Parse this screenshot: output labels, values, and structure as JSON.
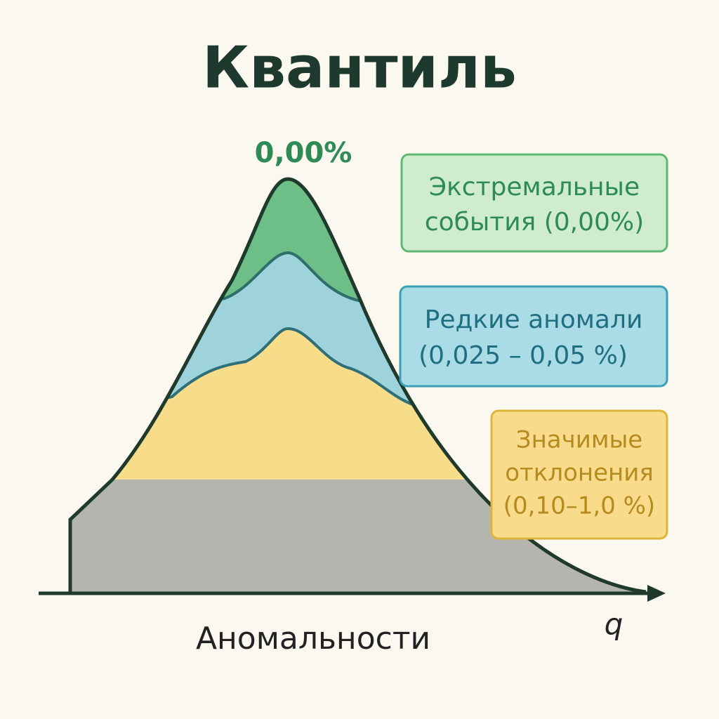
{
  "title": "Квантиль",
  "peak_label": "0,00%",
  "legend": [
    {
      "lines": [
        "Экстремальные",
        "события (0,00%)"
      ]
    },
    {
      "lines": [
        "Редкие аномали",
        "(0,025 – 0,05 %)"
      ]
    },
    {
      "lines": [
        "Значимые",
        "отклонения",
        "(0,10–1,0 %)"
      ]
    }
  ],
  "x_label": "Аномальности",
  "axis_symbol": "q"
}
